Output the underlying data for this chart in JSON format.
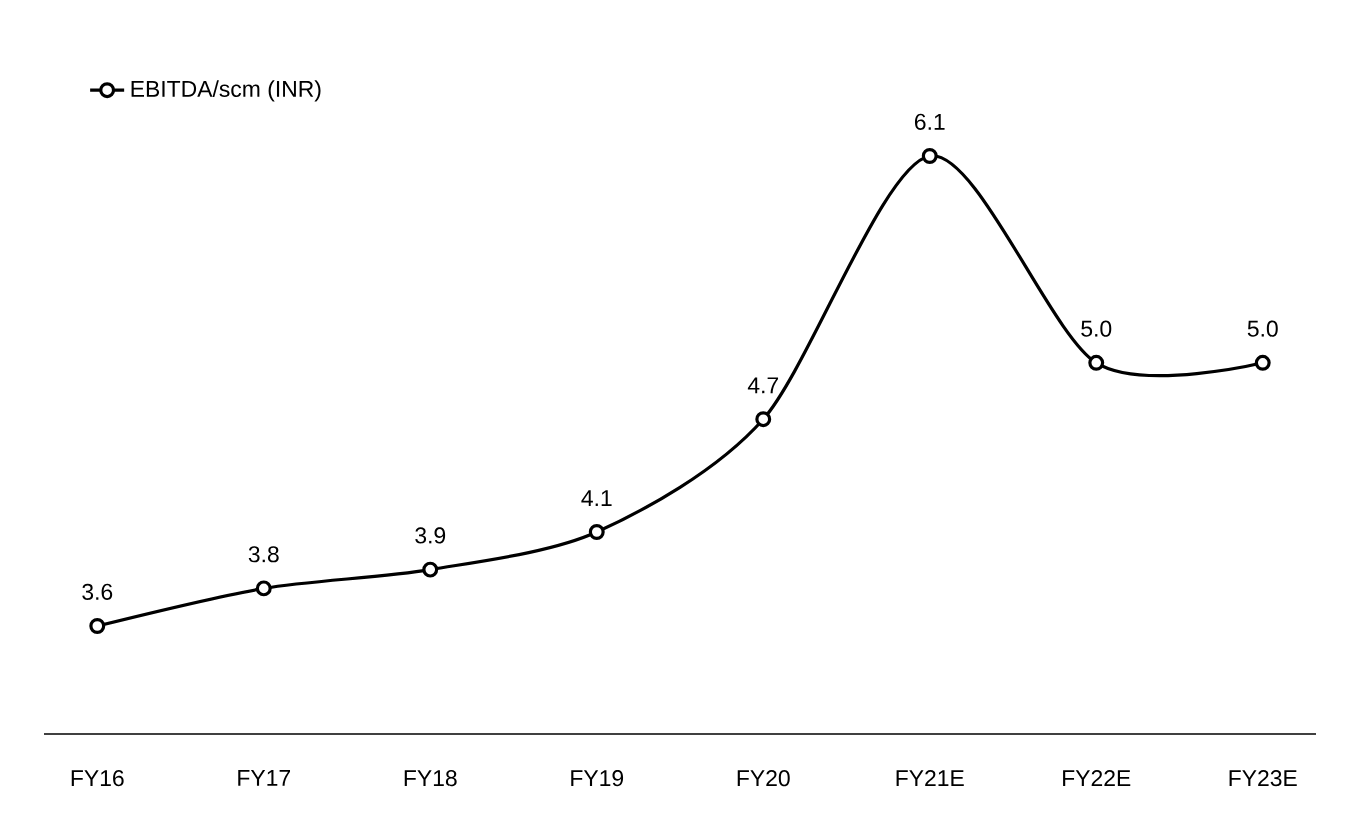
{
  "chart_data": {
    "type": "line",
    "categories": [
      "FY16",
      "FY17",
      "FY18",
      "FY19",
      "FY20",
      "FY21E",
      "FY22E",
      "FY23E"
    ],
    "series": [
      {
        "name": "EBITDA/scm (INR)",
        "color": "#000000",
        "values": [
          3.6,
          3.8,
          3.9,
          4.1,
          4.7,
          6.1,
          5.0,
          5.0
        ],
        "value_labels": [
          "3.6",
          "3.8",
          "3.9",
          "4.1",
          "4.7",
          "6.1",
          "5.0",
          "5.0"
        ]
      }
    ],
    "legend": "top left",
    "marker": "circle",
    "line_style": "solid",
    "grid": false,
    "tick_labels": "x"
  }
}
